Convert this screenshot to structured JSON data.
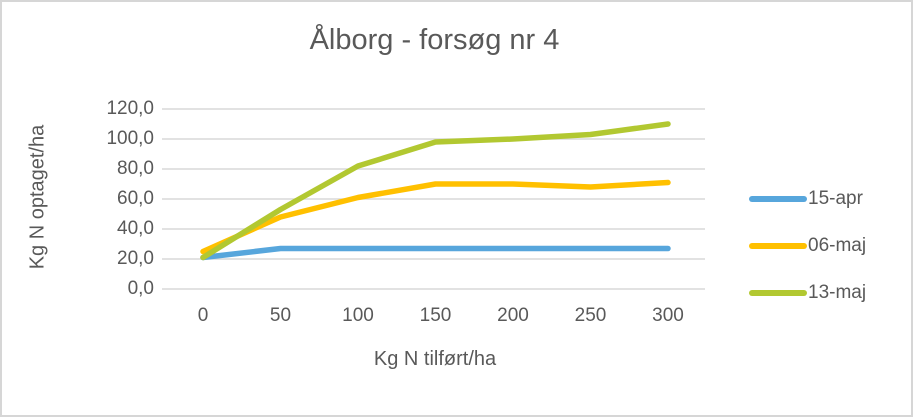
{
  "chart_data": {
    "type": "line",
    "title": "Ålborg - forsøg nr 4",
    "xlabel": "Kg N tilført/ha",
    "ylabel": "Kg N optaget/ha",
    "categories": [
      "0",
      "50",
      "100",
      "150",
      "200",
      "250",
      "300"
    ],
    "x_values": [
      0,
      50,
      100,
      150,
      200,
      250,
      300
    ],
    "series": [
      {
        "name": "15-apr",
        "color": "#57A6DC",
        "values": [
          21,
          27,
          27,
          27,
          27,
          27,
          27
        ]
      },
      {
        "name": "06-maj",
        "color": "#FFC000",
        "values": [
          25,
          48,
          61,
          70,
          70,
          68,
          71
        ]
      },
      {
        "name": "13-maj",
        "color": "#B2C831",
        "values": [
          21,
          53,
          82,
          98,
          100,
          103,
          110
        ]
      }
    ],
    "ylim": [
      0,
      120
    ],
    "ytick_step": 20,
    "ytick_labels": [
      "0,0",
      "20,0",
      "40,0",
      "60,0",
      "80,0",
      "100,0",
      "120,0"
    ],
    "grid": true,
    "legend_position": "right",
    "colors": {
      "text": "#595959",
      "gridline": "#D9D9D9",
      "frame_border": "#D6D6D6",
      "background": "#FFFFFF"
    }
  }
}
